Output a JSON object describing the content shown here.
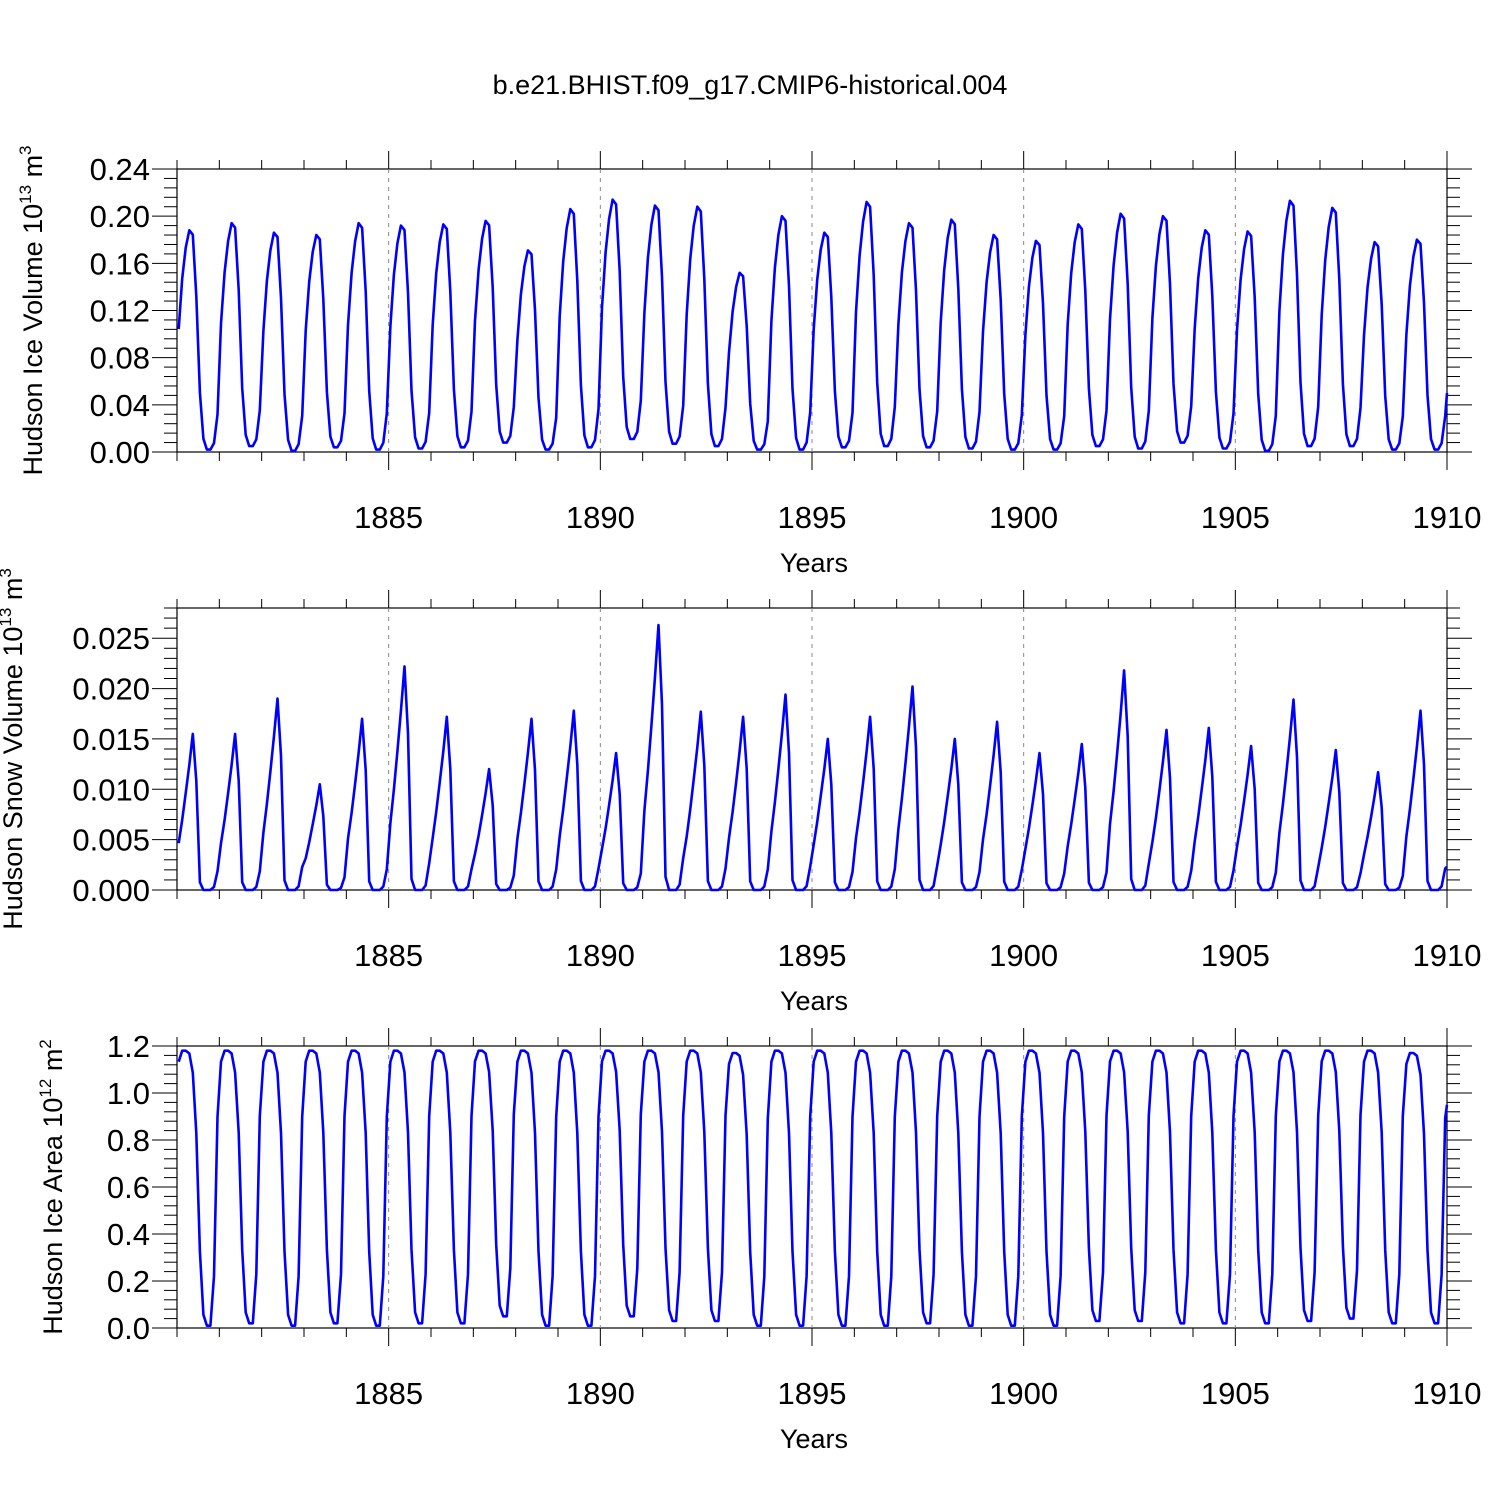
{
  "title": "b.e21.BHIST.f09_g17.CMIP6-historical.004",
  "chart_data": [
    {
      "type": "line",
      "ylabel": "Hudson Ice Volume 10",
      "ylabel_exp": "13",
      "ylabel_unit": " m",
      "ylabel_unit_exp": "3",
      "xlabel": "Years",
      "xlim": [
        1880.0,
        1910.0
      ],
      "ylim": [
        -1e-05,
        0.24
      ],
      "xticks": [
        1885,
        1890,
        1895,
        1900,
        1905,
        1910
      ],
      "xtick_labels": [
        "1885",
        "1890",
        "1895",
        "1900",
        "1905",
        "1910"
      ],
      "yticks": [
        0.0,
        0.04,
        0.08,
        0.12,
        0.16,
        0.2,
        0.24
      ],
      "ytick_labels": [
        "0.00",
        "0.04",
        "0.08",
        "0.12",
        "0.16",
        "0.20",
        "0.24"
      ],
      "grid": "vertical dashed at 5-year ticks",
      "color": "#0000ff",
      "x_start": 1880.0,
      "x_step": 0.083333,
      "peaks": [
        0.188,
        0.194,
        0.186,
        0.184,
        0.194,
        0.192,
        0.193,
        0.196,
        0.171,
        0.206,
        0.214,
        0.209,
        0.208,
        0.152,
        0.2,
        0.186,
        0.212,
        0.194,
        0.197,
        0.184,
        0.179,
        0.193,
        0.202,
        0.2,
        0.188,
        0.187,
        0.213,
        0.207,
        0.178,
        0.18
      ],
      "troughs": [
        0.002,
        0.005,
        0.001,
        0.004,
        0.002,
        0.003,
        0.004,
        0.008,
        0.002,
        0.004,
        0.011,
        0.007,
        0.005,
        0.002,
        0.002,
        0.004,
        0.005,
        0.004,
        0.003,
        0.002,
        0.002,
        0.005,
        0.003,
        0.008,
        0.003,
        0.001,
        0.005,
        0.005,
        0.002,
        0.002
      ],
      "end_value": 0.05
    },
    {
      "type": "line",
      "ylabel": "Hudson Snow Volume 10",
      "ylabel_exp": "13",
      "ylabel_unit": " m",
      "ylabel_unit_exp": "3",
      "xlabel": "Years",
      "xlim": [
        1880.0,
        1910.0
      ],
      "ylim": [
        0.0,
        0.028
      ],
      "xticks": [
        1885,
        1890,
        1895,
        1900,
        1905,
        1910
      ],
      "xtick_labels": [
        "1885",
        "1890",
        "1895",
        "1900",
        "1905",
        "1910"
      ],
      "yticks": [
        0.0,
        0.005,
        0.01,
        0.015,
        0.02,
        0.025
      ],
      "ytick_labels": [
        "0.000",
        "0.005",
        "0.010",
        "0.015",
        "0.020",
        "0.025"
      ],
      "grid": "vertical dashed at 5-year ticks",
      "color": "#0000ff",
      "x_start": 1880.0,
      "x_step": 0.083333,
      "peaks": [
        0.0155,
        0.0155,
        0.019,
        0.0105,
        0.017,
        0.0222,
        0.0172,
        0.012,
        0.017,
        0.0178,
        0.0136,
        0.0263,
        0.0177,
        0.0172,
        0.0194,
        0.015,
        0.0172,
        0.0202,
        0.015,
        0.0167,
        0.0136,
        0.0145,
        0.0218,
        0.0159,
        0.0161,
        0.0143,
        0.0189,
        0.0139,
        0.0117,
        0.0178
      ],
      "troughs": [
        0.0,
        0.0,
        0.0,
        0.0,
        0.0,
        0.0,
        0.0,
        0.0,
        0.0,
        0.0,
        0.0,
        0.0,
        0.0,
        0.0,
        0.0,
        0.0,
        0.0,
        0.0,
        0.0,
        0.0,
        0.0,
        0.0,
        0.0,
        0.0,
        0.0,
        0.0,
        0.0,
        0.0,
        0.0,
        0.0
      ],
      "end_value": 0.0023
    },
    {
      "type": "line",
      "ylabel": "Hudson Ice Area 10",
      "ylabel_exp": "12",
      "ylabel_unit": " m",
      "ylabel_unit_exp": "2",
      "xlabel": "Years",
      "xlim": [
        1880.0,
        1910.0
      ],
      "ylim": [
        0.0,
        1.2
      ],
      "xticks": [
        1885,
        1890,
        1895,
        1900,
        1905,
        1910
      ],
      "xtick_labels": [
        "1885",
        "1890",
        "1895",
        "1900",
        "1905",
        "1910"
      ],
      "yticks": [
        0.0,
        0.2,
        0.4,
        0.6,
        0.8,
        1.0,
        1.2
      ],
      "ytick_labels": [
        "0.0",
        "0.2",
        "0.4",
        "0.6",
        "0.8",
        "1.0",
        "1.2"
      ],
      "grid": "vertical dashed at 5-year ticks",
      "color": "#0000ff",
      "x_start": 1880.0,
      "x_step": 0.083333,
      "peaks": [
        1.18,
        1.18,
        1.18,
        1.18,
        1.18,
        1.18,
        1.18,
        1.18,
        1.18,
        1.18,
        1.18,
        1.18,
        1.18,
        1.17,
        1.18,
        1.18,
        1.18,
        1.18,
        1.18,
        1.18,
        1.18,
        1.18,
        1.18,
        1.18,
        1.18,
        1.18,
        1.18,
        1.18,
        1.18,
        1.17
      ],
      "troughs": [
        0.01,
        0.02,
        0.01,
        0.02,
        0.01,
        0.02,
        0.02,
        0.05,
        0.01,
        0.01,
        0.05,
        0.03,
        0.03,
        0.01,
        0.01,
        0.01,
        0.01,
        0.02,
        0.01,
        0.01,
        0.01,
        0.03,
        0.03,
        0.02,
        0.02,
        0.02,
        0.03,
        0.04,
        0.02,
        0.02
      ],
      "end_value": 0.95
    }
  ]
}
